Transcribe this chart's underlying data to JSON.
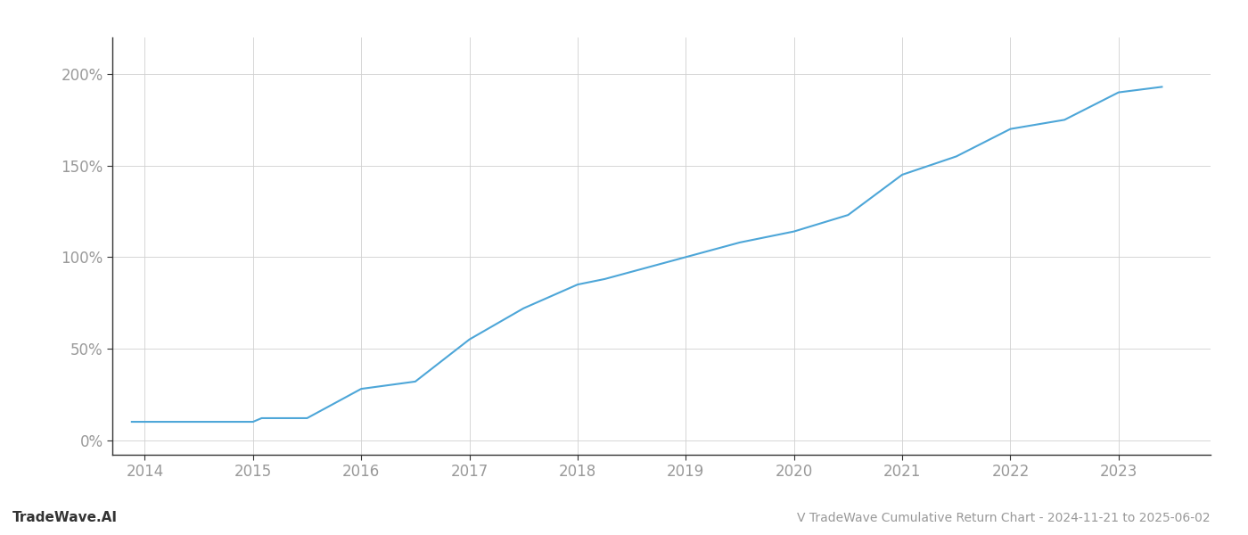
{
  "title": "V TradeWave Cumulative Return Chart - 2024-11-21 to 2025-06-02",
  "watermark": "TradeWave.AI",
  "line_color": "#4da6d8",
  "background_color": "#ffffff",
  "grid_color": "#d0d0d0",
  "x_years": [
    2014,
    2015,
    2016,
    2017,
    2018,
    2019,
    2020,
    2021,
    2022,
    2023
  ],
  "x_data": [
    2013.88,
    2014.0,
    2014.25,
    2014.5,
    2014.75,
    2014.92,
    2015.0,
    2015.08,
    2015.5,
    2016.0,
    2016.5,
    2017.0,
    2017.5,
    2018.0,
    2018.25,
    2019.0,
    2019.5,
    2020.0,
    2020.5,
    2021.0,
    2021.5,
    2022.0,
    2022.5,
    2023.0,
    2023.4
  ],
  "y_data": [
    10,
    10,
    10,
    10,
    10,
    10,
    10,
    12,
    12,
    28,
    32,
    55,
    72,
    85,
    88,
    100,
    108,
    114,
    123,
    145,
    155,
    170,
    175,
    190,
    193
  ],
  "ylim": [
    -8,
    220
  ],
  "yticks": [
    0,
    50,
    100,
    150,
    200
  ],
  "ytick_labels": [
    "0%",
    "50%",
    "100%",
    "150%",
    "200%"
  ],
  "xlim_left": 2013.7,
  "xlim_right": 2023.85,
  "title_fontsize": 10,
  "watermark_fontsize": 11,
  "tick_fontsize": 12,
  "axis_label_color": "#999999",
  "title_color": "#999999",
  "watermark_color": "#333333",
  "line_width": 1.5,
  "spine_color": "#333333"
}
